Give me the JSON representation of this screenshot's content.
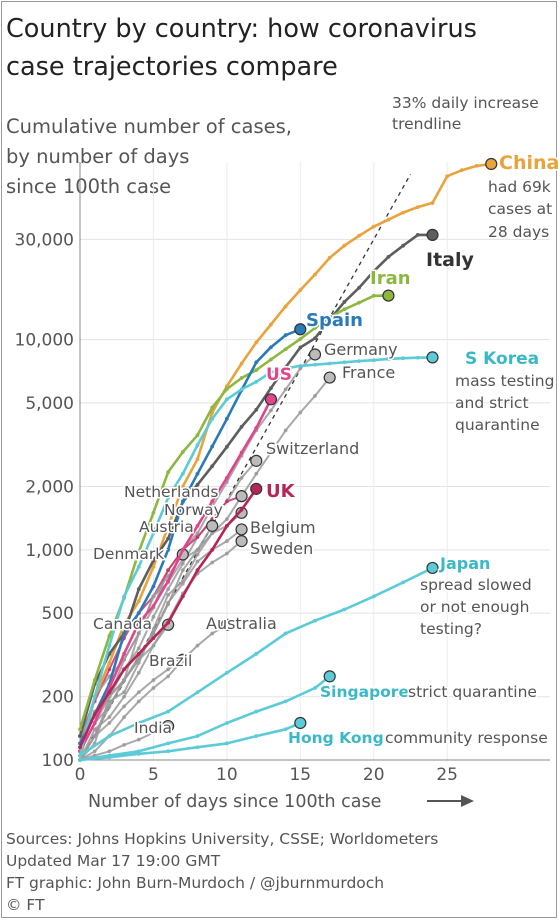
{
  "title_line1": "Country by country: how coronavirus",
  "title_line2": "case trajectories compare",
  "subtitle_lines": [
    "Cumulative number of cases,",
    "by number of days",
    "since 100th case"
  ],
  "trendline_label": [
    "33% daily increase",
    "trendline"
  ],
  "footer": {
    "sources": "Sources: Johns Hopkins University, CSSE; Worldometers",
    "updated": "Updated Mar 17 19:00 GMT",
    "graphic": "FT graphic: John Burn-Murdoch / @jburnmurdoch",
    "copyright": "© FT"
  },
  "chart_data": {
    "type": "line",
    "xlabel": "Number of days since 100th case",
    "xlim": [
      0,
      32
    ],
    "ylim": [
      100,
      70000
    ],
    "yscale": "log",
    "xticks": [
      0,
      5,
      10,
      15,
      20,
      25
    ],
    "yticks": [
      {
        "v": 100,
        "label": "100"
      },
      {
        "v": 200,
        "label": "200"
      },
      {
        "v": 500,
        "label": "500"
      },
      {
        "v": 1000,
        "label": "1,000"
      },
      {
        "v": 2000,
        "label": "2,000"
      },
      {
        "v": 5000,
        "label": "5,000"
      },
      {
        "v": 10000,
        "label": "10,000"
      },
      {
        "v": 30000,
        "label": "30,000"
      }
    ],
    "grid": true,
    "trendline": {
      "rate": 0.33,
      "start": 100
    },
    "series": [
      {
        "name": "China",
        "color": "#e8a33c",
        "bold": true,
        "label_color": "#e8a33c",
        "note": [
          "had 69k",
          "cases at",
          "28 days"
        ],
        "x": [
          0,
          1,
          2,
          3,
          4,
          5,
          6,
          7,
          8,
          9,
          10,
          11,
          12,
          13,
          14,
          15,
          16,
          17,
          18,
          19,
          20,
          21,
          22,
          23,
          24,
          25,
          26,
          27,
          28
        ],
        "y": [
          100,
          200,
          290,
          440,
          570,
          830,
          1290,
          2000,
          2700,
          4500,
          6000,
          7700,
          9700,
          11800,
          14400,
          17200,
          20400,
          24500,
          28000,
          31200,
          34500,
          37200,
          40200,
          42700,
          44700,
          59900,
          64000,
          67100,
          68500
        ]
      },
      {
        "name": "Italy",
        "color": "#5e5e5e",
        "bold": true,
        "label_color": "#333333",
        "x": [
          0,
          1,
          2,
          3,
          4,
          5,
          6,
          7,
          8,
          9,
          10,
          11,
          12,
          13,
          14,
          15,
          16,
          17,
          18,
          19,
          20,
          21,
          22,
          23,
          24
        ],
        "y": [
          130,
          230,
          320,
          400,
          650,
          890,
          1130,
          1690,
          2040,
          2500,
          3090,
          3850,
          4640,
          5880,
          7380,
          9170,
          10150,
          12460,
          15110,
          17660,
          21160,
          24750,
          27980,
          31510,
          31500
        ]
      },
      {
        "name": "Iran",
        "color": "#8cb840",
        "bold": true,
        "label_color": "#8cb840",
        "x": [
          0,
          1,
          2,
          3,
          4,
          5,
          6,
          7,
          8,
          9,
          10,
          11,
          12,
          13,
          14,
          15,
          16,
          17,
          18,
          19,
          20,
          21
        ],
        "y": [
          140,
          240,
          390,
          590,
          980,
          1500,
          2340,
          2920,
          3510,
          4750,
          5820,
          6570,
          7160,
          8040,
          9000,
          10070,
          11360,
          12730,
          13940,
          14990,
          16170,
          16200
        ]
      },
      {
        "name": "Spain",
        "color": "#2a7ab8",
        "bold": true,
        "label_color": "#2a7ab8",
        "x": [
          0,
          1,
          2,
          3,
          4,
          5,
          6,
          7,
          8,
          9,
          10,
          11,
          12,
          13,
          14,
          15
        ],
        "y": [
          120,
          165,
          230,
          400,
          500,
          670,
          1000,
          1700,
          2300,
          3100,
          4200,
          5750,
          7800,
          9200,
          10500,
          11200
        ]
      },
      {
        "name": "Germany",
        "color": "#9a9a9a",
        "label_color": "#555555",
        "x": [
          0,
          1,
          2,
          3,
          4,
          5,
          6,
          7,
          8,
          9,
          10,
          11,
          12,
          13,
          14,
          15,
          16
        ],
        "y": [
          130,
          160,
          200,
          240,
          400,
          530,
          800,
          1000,
          1200,
          1600,
          2100,
          2800,
          3700,
          4600,
          5800,
          7300,
          8500
        ]
      },
      {
        "name": "France",
        "color": "#9a9a9a",
        "label_color": "#555555",
        "x": [
          0,
          1,
          2,
          3,
          4,
          5,
          6,
          7,
          8,
          9,
          10,
          11,
          12,
          13,
          14,
          15,
          16,
          17
        ],
        "y": [
          100,
          130,
          190,
          210,
          290,
          420,
          610,
          710,
          950,
          1200,
          1400,
          1800,
          2300,
          2900,
          3700,
          4500,
          5400,
          6600
        ]
      },
      {
        "name": "US",
        "color": "#e0468c",
        "bold": true,
        "label_color": "#e0468c",
        "x": [
          0,
          1,
          2,
          3,
          4,
          5,
          6,
          7,
          8,
          9,
          10,
          11,
          12,
          13
        ],
        "y": [
          110,
          150,
          220,
          320,
          450,
          540,
          710,
          1000,
          1300,
          1700,
          2200,
          2900,
          3800,
          5200
        ]
      },
      {
        "name": "S Korea",
        "color": "#5ccbd8",
        "bold": true,
        "label_color": "#3bb8c8",
        "note": [
          "mass testing",
          "and strict",
          "quarantine"
        ],
        "x": [
          0,
          1,
          2,
          3,
          4,
          5,
          6,
          7,
          8,
          9,
          10,
          11,
          12,
          13,
          14,
          15,
          16,
          17,
          18,
          19,
          20,
          21,
          22,
          23,
          24
        ],
        "y": [
          105,
          200,
          350,
          600,
          830,
          1200,
          1770,
          2300,
          3150,
          4200,
          5200,
          5800,
          6300,
          7000,
          7300,
          7500,
          7600,
          7700,
          7800,
          7900,
          7980,
          8100,
          8160,
          8200,
          8230
        ]
      },
      {
        "name": "Switzerland",
        "color": "#9a9a9a",
        "label_color": "#555555",
        "x": [
          0,
          1,
          2,
          3,
          4,
          5,
          6,
          7,
          8,
          9,
          10,
          11,
          12
        ],
        "y": [
          100,
          120,
          200,
          270,
          340,
          480,
          650,
          860,
          1150,
          1380,
          1700,
          2200,
          2650
        ]
      },
      {
        "name": "UK",
        "color": "#b5255a",
        "bold": true,
        "label_color": "#b5255a",
        "x": [
          0,
          1,
          2,
          3,
          4,
          5,
          6,
          7,
          8,
          9,
          10,
          11,
          12
        ],
        "y": [
          115,
          165,
          210,
          270,
          320,
          380,
          450,
          600,
          800,
          1000,
          1300,
          1550,
          1950
        ]
      },
      {
        "name": "Netherlands",
        "color": "#c8336e",
        "label_color": "#555555",
        "x": [
          0,
          1,
          2,
          3,
          4,
          5,
          6,
          7,
          8,
          9,
          10,
          11
        ],
        "y": [
          130,
          190,
          270,
          380,
          500,
          600,
          800,
          1000,
          1150,
          1400,
          1700,
          1800
        ]
      },
      {
        "name": "Norway",
        "color": "#9a9a9a",
        "label_color": "#555555",
        "x": [
          0,
          1,
          2,
          3,
          4,
          5,
          6,
          7,
          8,
          9,
          10,
          11
        ],
        "y": [
          110,
          150,
          200,
          300,
          400,
          600,
          700,
          900,
          1000,
          1200,
          1300,
          1500
        ]
      },
      {
        "name": "Austria",
        "color": "#9a9a9a",
        "label_color": "#555555",
        "x": [
          0,
          1,
          2,
          3,
          4,
          5,
          6,
          7,
          8,
          9
        ],
        "y": [
          100,
          130,
          180,
          240,
          300,
          400,
          550,
          800,
          1000,
          1300
        ]
      },
      {
        "name": "Belgium",
        "color": "#9a9a9a",
        "label_color": "#555555",
        "x": [
          0,
          1,
          2,
          3,
          4,
          5,
          6,
          7,
          8,
          9,
          10,
          11
        ],
        "y": [
          110,
          170,
          200,
          240,
          310,
          400,
          560,
          690,
          880,
          1000,
          1100,
          1250
        ]
      },
      {
        "name": "Sweden",
        "color": "#9a9a9a",
        "label_color": "#555555",
        "x": [
          0,
          1,
          2,
          3,
          4,
          5,
          6,
          7,
          8,
          9,
          10,
          11
        ],
        "y": [
          100,
          140,
          160,
          200,
          260,
          350,
          460,
          620,
          770,
          870,
          960,
          1100
        ]
      },
      {
        "name": "Denmark",
        "color": "#9a9a9a",
        "label_color": "#555555",
        "x": [
          0,
          1,
          2,
          3,
          4,
          5,
          6,
          7
        ],
        "y": [
          120,
          200,
          250,
          300,
          400,
          600,
          750,
          950
        ]
      },
      {
        "name": "Canada",
        "color": "#9a9a9a",
        "label_color": "#555555",
        "x": [
          0,
          1,
          2,
          3,
          4,
          5,
          6
        ],
        "y": [
          110,
          150,
          180,
          240,
          300,
          350,
          440
        ]
      },
      {
        "name": "Australia",
        "color": "#9a9a9a",
        "label_color": "#555555",
        "x": [
          0,
          1,
          2,
          3,
          4,
          5,
          6,
          7,
          8,
          9,
          10
        ],
        "y": [
          100,
          110,
          130,
          160,
          190,
          220,
          250,
          300,
          350,
          400,
          440
        ]
      },
      {
        "name": "Brazil",
        "color": "#9a9a9a",
        "label_color": "#555555",
        "x": [
          0,
          1,
          2,
          3,
          4,
          5,
          6,
          7
        ],
        "y": [
          100,
          130,
          150,
          180,
          210,
          240,
          270,
          300
        ]
      },
      {
        "name": "India",
        "color": "#9a9a9a",
        "label_color": "#555555",
        "x": [
          0,
          1,
          2,
          3,
          4,
          5,
          6
        ],
        "y": [
          100,
          105,
          110,
          118,
          125,
          135,
          145
        ]
      },
      {
        "name": "Japan",
        "color": "#5ccbd8",
        "bold": true,
        "label_color": "#3bb8c8",
        "note": [
          "spread slowed",
          "or not enough",
          "testing?"
        ],
        "x": [
          0,
          2,
          4,
          6,
          8,
          10,
          12,
          14,
          16,
          18,
          20,
          22,
          24
        ],
        "y": [
          105,
          130,
          150,
          170,
          210,
          260,
          320,
          400,
          460,
          520,
          600,
          700,
          820
        ]
      },
      {
        "name": "Singapore",
        "color": "#5ccbd8",
        "bold": true,
        "label_color": "#3bb8c8",
        "note": [
          "strict quarantine"
        ],
        "x": [
          0,
          2,
          4,
          6,
          8,
          10,
          12,
          14,
          16,
          17
        ],
        "y": [
          100,
          105,
          110,
          120,
          130,
          150,
          170,
          190,
          220,
          250
        ]
      },
      {
        "name": "Hong Kong",
        "color": "#5ccbd8",
        "bold": true,
        "label_color": "#3bb8c8",
        "note": [
          "community response"
        ],
        "x": [
          0,
          2,
          4,
          6,
          8,
          10,
          12,
          14,
          15
        ],
        "y": [
          100,
          103,
          107,
          110,
          115,
          120,
          130,
          140,
          150
        ]
      }
    ]
  }
}
